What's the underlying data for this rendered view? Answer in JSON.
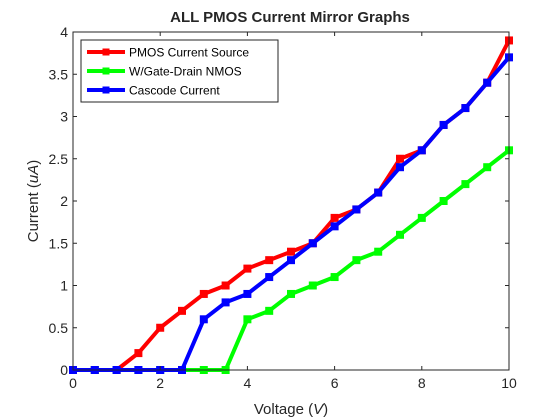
{
  "chart_data": {
    "type": "line",
    "title": "ALL PMOS Current Mirror Graphs",
    "xlabel": {
      "prefix": "Voltage (",
      "var": "V",
      "suffix": ")"
    },
    "ylabel": {
      "prefix": "Current (",
      "var": "uA",
      "suffix": ")"
    },
    "xlim": [
      0,
      10
    ],
    "ylim": [
      0,
      4
    ],
    "xticks": [
      0,
      2,
      4,
      6,
      8,
      10
    ],
    "yticks": [
      0,
      0.5,
      1,
      1.5,
      2,
      2.5,
      3,
      3.5,
      4
    ],
    "xtick_labels": [
      "0",
      "2",
      "4",
      "6",
      "8",
      "10"
    ],
    "ytick_labels": [
      "0",
      "0.5",
      "1",
      "1.5",
      "2",
      "2.5",
      "3",
      "3.5",
      "4"
    ],
    "grid": false,
    "legend_position": "top-left",
    "x": [
      0,
      0.5,
      1,
      1.5,
      2,
      2.5,
      3,
      3.5,
      4,
      4.5,
      5,
      5.5,
      6,
      6.5,
      7,
      7.5,
      8,
      8.5,
      9,
      9.5,
      10
    ],
    "series": [
      {
        "name": "PMOS Current Source",
        "color": "#ff0000",
        "values": [
          0,
          0,
          0,
          0.2,
          0.5,
          0.7,
          0.9,
          1.0,
          1.2,
          1.3,
          1.4,
          1.5,
          1.8,
          1.9,
          2.1,
          2.5,
          2.6,
          2.9,
          3.1,
          3.4,
          3.9
        ]
      },
      {
        "name": "W/Gate-Drain NMOS",
        "color": "#00ff00",
        "values": [
          0,
          0,
          0,
          0,
          0,
          0,
          0,
          0,
          0.6,
          0.7,
          0.9,
          1.0,
          1.1,
          1.3,
          1.4,
          1.6,
          1.8,
          2.0,
          2.2,
          2.4,
          2.6
        ]
      },
      {
        "name": "Cascode Current",
        "color": "#0000ff",
        "values": [
          0,
          0,
          0,
          0,
          0,
          0,
          0.6,
          0.8,
          0.9,
          1.1,
          1.3,
          1.5,
          1.7,
          1.9,
          2.1,
          2.4,
          2.6,
          2.9,
          3.1,
          3.4,
          3.7
        ]
      }
    ]
  }
}
